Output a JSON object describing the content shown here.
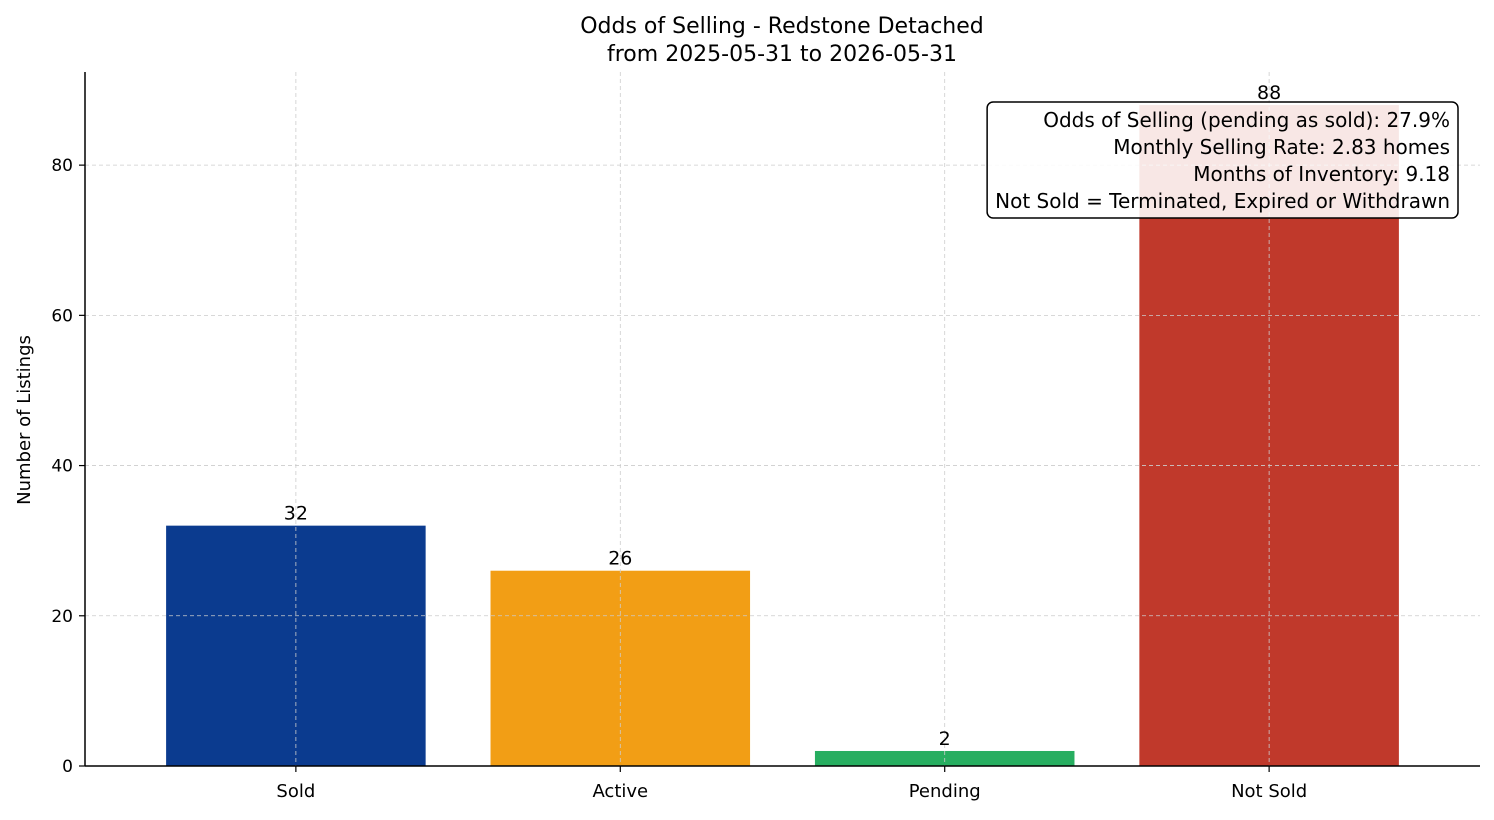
{
  "chart_data": {
    "type": "bar",
    "title": "Odds of Selling - Redstone Detached",
    "subtitle": "from 2025-05-31 to 2026-05-31",
    "xlabel": "",
    "ylabel": "Number of Listings",
    "categories": [
      "Sold",
      "Active",
      "Pending",
      "Not Sold"
    ],
    "values": [
      32,
      26,
      2,
      88
    ],
    "value_labels": [
      "32",
      "26",
      "2",
      "88"
    ],
    "colors": [
      "#0b3b8f",
      "#f29e15",
      "#27ae60",
      "#c0392b"
    ],
    "ylim": [
      0,
      92.4
    ],
    "yticks": [
      0,
      20,
      40,
      60,
      80
    ],
    "ytick_labels": [
      "0",
      "20",
      "40",
      "60",
      "80"
    ],
    "grid": true,
    "annotation": {
      "placement": "top-right",
      "lines": [
        "Odds of Selling (pending as sold): 27.9%",
        "Monthly Selling Rate: 2.83 homes",
        "Months of Inventory: 9.18",
        "Not Sold = Terminated, Expired or Withdrawn"
      ]
    }
  }
}
